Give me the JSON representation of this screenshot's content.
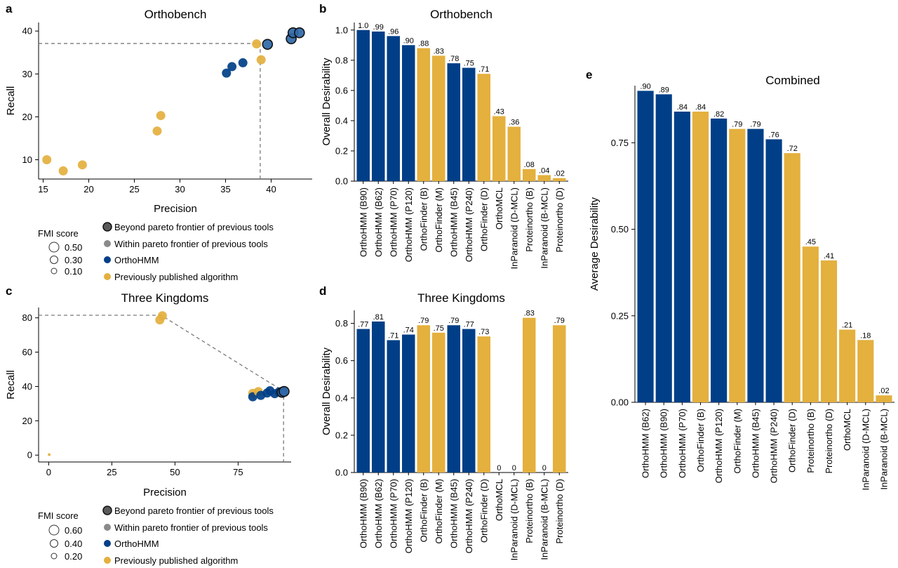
{
  "colors": {
    "orthohmm": "#003f87",
    "previous": "#e4b03e",
    "mid_blue": "#2f68a8",
    "gray": "#8a8a8a",
    "dark_gray": "#5a5a5a"
  },
  "legends": {
    "fmi_title": "FMI score",
    "beyond": "Beyond pareto frontier of previous tools",
    "within": "Within pareto frontier of previous tools",
    "orthohmm": "OrthoHMM",
    "previous": "Previously published algorithm",
    "a_sizes": [
      "0.50",
      "0.30",
      "0.10"
    ],
    "c_sizes": [
      "0.60",
      "0.40",
      "0.20"
    ]
  },
  "chart_data": [
    {
      "panel": "a",
      "type": "scatter",
      "title": "Orthobench",
      "xlabel": "Precision",
      "ylabel": "Recall",
      "xlim": [
        14.5,
        44.5
      ],
      "ylim": [
        5.5,
        42
      ],
      "xticks": [
        15,
        20,
        25,
        30,
        35,
        40
      ],
      "yticks": [
        10,
        20,
        30,
        40
      ],
      "frontier": [
        [
          14.5,
          37.1
        ],
        [
          38.8,
          37.1
        ],
        [
          38.8,
          5.5
        ]
      ],
      "points": [
        {
          "x": 15.4,
          "y": 10.0,
          "group": "previous"
        },
        {
          "x": 17.2,
          "y": 7.4,
          "group": "previous"
        },
        {
          "x": 19.3,
          "y": 8.8,
          "group": "previous"
        },
        {
          "x": 27.5,
          "y": 16.7,
          "group": "previous"
        },
        {
          "x": 27.9,
          "y": 20.3,
          "group": "previous"
        },
        {
          "x": 35.1,
          "y": 30.2,
          "group": "orthohmm"
        },
        {
          "x": 35.7,
          "y": 31.7,
          "group": "orthohmm"
        },
        {
          "x": 36.9,
          "y": 32.6,
          "group": "orthohmm"
        },
        {
          "x": 38.4,
          "y": 37.0,
          "group": "previous"
        },
        {
          "x": 38.9,
          "y": 33.3,
          "group": "previous"
        },
        {
          "x": 39.6,
          "y": 36.9,
          "group": "beyond"
        },
        {
          "x": 42.2,
          "y": 38.2,
          "group": "beyond"
        },
        {
          "x": 42.4,
          "y": 39.6,
          "group": "beyond"
        },
        {
          "x": 43.1,
          "y": 39.6,
          "group": "beyond"
        }
      ]
    },
    {
      "panel": "b",
      "type": "bar",
      "title": "Orthobench",
      "ylabel": "Overall Desirability",
      "ylim": [
        0,
        1.05
      ],
      "yticks": [
        "0.0",
        "0.2",
        "0.4",
        "0.6",
        "0.8",
        "1.0"
      ],
      "categories": [
        "OrthoHMM (B90)",
        "OrthoHMM (B62)",
        "OrthoHMM (P70)",
        "OrthoHMM (P120)",
        "OrthoFinder (B)",
        "OrthoFinder (M)",
        "OrthoHMM (B45)",
        "OrthoHMM (P240)",
        "OrthoFinder (D)",
        "OrthoMCL",
        "InParanoid (D-MCL)",
        "Proteinortho (B)",
        "InParanoid (B-MCL)",
        "Proteinortho (D)"
      ],
      "values": [
        1.0,
        0.99,
        0.96,
        0.9,
        0.88,
        0.83,
        0.78,
        0.75,
        0.71,
        0.43,
        0.36,
        0.08,
        0.04,
        0.02
      ],
      "labels": [
        "1.0",
        ".99",
        ".96",
        ".90",
        ".88",
        ".83",
        ".78",
        ".75",
        ".71",
        ".43",
        ".36",
        ".08",
        ".04",
        ".02"
      ],
      "groups": [
        "orthohmm",
        "orthohmm",
        "orthohmm",
        "orthohmm",
        "previous",
        "previous",
        "orthohmm",
        "orthohmm",
        "previous",
        "previous",
        "previous",
        "previous",
        "previous",
        "previous"
      ]
    },
    {
      "panel": "c",
      "type": "scatter",
      "title": "Three Kingdoms",
      "xlabel": "Precision",
      "ylabel": "Recall",
      "xlim": [
        -4,
        96
      ],
      "ylim": [
        -4,
        86
      ],
      "xticks": [
        0,
        25,
        50,
        75
      ],
      "yticks": [
        0,
        20,
        40,
        60,
        80
      ],
      "frontier": [
        [
          -4,
          81.5
        ],
        [
          44.5,
          81.5
        ],
        [
          93,
          37.2
        ],
        [
          93,
          -4
        ]
      ],
      "points": [
        {
          "x": 0.2,
          "y": 0.3,
          "group": "previous",
          "r": 2
        },
        {
          "x": 44.0,
          "y": 78.8,
          "group": "previous"
        },
        {
          "x": 45.0,
          "y": 81.2,
          "group": "previous"
        },
        {
          "x": 80.8,
          "y": 36.0,
          "group": "previous"
        },
        {
          "x": 80.8,
          "y": 34.0,
          "group": "orthohmm"
        },
        {
          "x": 83.0,
          "y": 37.0,
          "group": "previous"
        },
        {
          "x": 84.0,
          "y": 34.8,
          "group": "orthohmm"
        },
        {
          "x": 86.5,
          "y": 36.2,
          "group": "orthohmm"
        },
        {
          "x": 87.6,
          "y": 37.5,
          "group": "orthohmm"
        },
        {
          "x": 89.5,
          "y": 35.8,
          "group": "orthohmm"
        },
        {
          "x": 91.2,
          "y": 36.8,
          "group": "orthohmm"
        },
        {
          "x": 92.4,
          "y": 36.6,
          "group": "beyond"
        },
        {
          "x": 93.2,
          "y": 37.1,
          "group": "beyond"
        }
      ]
    },
    {
      "panel": "d",
      "type": "bar",
      "title": "Three Kingdoms",
      "ylabel": "Overall Desirability",
      "ylim": [
        0,
        0.87
      ],
      "yticks": [
        "0.0",
        "0.2",
        "0.4",
        "0.6",
        "0.8"
      ],
      "categories": [
        "OrthoHMM (B90)",
        "OrthoHMM (B62)",
        "OrthoHMM (P70)",
        "OrthoHMM (P120)",
        "OrthoFinder (B)",
        "OrthoFinder (M)",
        "OrthoHMM (B45)",
        "OrthoHMM (P240)",
        "OrthoFinder (D)",
        "OrthoMCL",
        "InParanoid (D-MCL)",
        "Proteinortho (B)",
        "InParanoid (B-MCL)",
        "Proteinortho (D)"
      ],
      "values": [
        0.77,
        0.81,
        0.71,
        0.74,
        0.79,
        0.75,
        0.79,
        0.77,
        0.73,
        0,
        0,
        0.83,
        0,
        0.79
      ],
      "labels": [
        ".77",
        ".81",
        ".71",
        ".74",
        ".79",
        ".75",
        ".79",
        ".77",
        ".73",
        "0",
        "0",
        ".83",
        "0",
        ".79"
      ],
      "groups": [
        "orthohmm",
        "orthohmm",
        "orthohmm",
        "orthohmm",
        "previous",
        "previous",
        "orthohmm",
        "orthohmm",
        "previous",
        "previous",
        "previous",
        "previous",
        "previous",
        "previous"
      ]
    },
    {
      "panel": "e",
      "type": "bar",
      "title": "Combined",
      "ylabel": "Average Desirability",
      "ylim": [
        0,
        0.915
      ],
      "yticks": [
        "0.00",
        "0.25",
        "0.50",
        "0.75"
      ],
      "categories": [
        "OrthoHMM (B62)",
        "OrthoHMM (B90)",
        "OrthoHMM (P70)",
        "OrthoFinder (B)",
        "OrthoHMM (P120)",
        "OrthoFinder (M)",
        "OrthoHMM (B45)",
        "OrthoHMM (P240)",
        "OrthoFinder (D)",
        "Proteinortho (B)",
        "Proteinortho (D)",
        "OrthoMCL",
        "InParanoid (D-MCL)",
        "InParanoid (B-MCL)"
      ],
      "values": [
        0.9,
        0.89,
        0.84,
        0.84,
        0.82,
        0.79,
        0.79,
        0.76,
        0.72,
        0.45,
        0.41,
        0.21,
        0.18,
        0.02
      ],
      "labels": [
        ".90",
        ".89",
        ".84",
        ".84",
        ".82",
        ".79",
        ".79",
        ".76",
        ".72",
        ".45",
        ".41",
        ".21",
        ".18",
        ".02"
      ],
      "groups": [
        "orthohmm",
        "orthohmm",
        "orthohmm",
        "previous",
        "orthohmm",
        "previous",
        "orthohmm",
        "orthohmm",
        "previous",
        "previous",
        "previous",
        "previous",
        "previous",
        "previous"
      ]
    }
  ]
}
